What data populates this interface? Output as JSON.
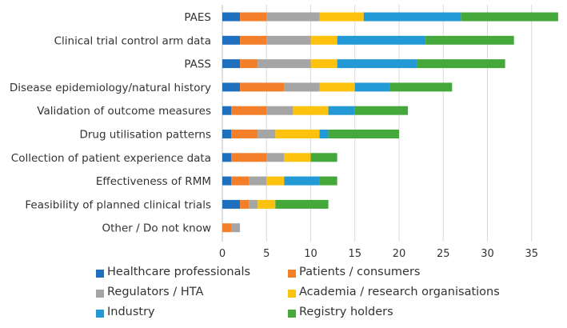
{
  "chart_data": {
    "type": "bar",
    "orientation": "horizontal",
    "stacked": true,
    "categories": [
      "PAES",
      "Clinical trial control arm data",
      "PASS",
      "Disease epidemiology/natural history",
      "Validation of outcome measures",
      "Drug utilisation patterns",
      "Collection of patient experience data",
      "Effectiveness of RMM",
      "Feasibility of planned clinical trials",
      "Other / Do not know"
    ],
    "series": [
      {
        "name": "Healthcare professionals",
        "color": "#1f6fbf",
        "values": [
          2,
          2,
          2,
          2,
          1,
          1,
          1,
          1,
          2,
          0
        ]
      },
      {
        "name": "Patients / consumers",
        "color": "#f47f2a",
        "values": [
          3,
          3,
          2,
          5,
          4,
          3,
          4,
          2,
          1,
          1
        ]
      },
      {
        "name": "Regulators / HTA",
        "color": "#a5a5a5",
        "values": [
          6,
          5,
          6,
          4,
          3,
          2,
          2,
          2,
          1,
          1
        ]
      },
      {
        "name": "Academia / research organisations",
        "color": "#fdc20e",
        "values": [
          5,
          3,
          3,
          4,
          4,
          5,
          3,
          2,
          2,
          0
        ]
      },
      {
        "name": "Industry",
        "color": "#239ad6",
        "values": [
          11,
          10,
          9,
          4,
          3,
          1,
          0,
          4,
          0,
          0
        ]
      },
      {
        "name": "Registry holders",
        "color": "#44a83b",
        "values": [
          11,
          10,
          10,
          7,
          6,
          8,
          3,
          2,
          6,
          0
        ]
      }
    ],
    "xticks": [
      0,
      5,
      10,
      15,
      20,
      25,
      30,
      35
    ],
    "xlim": [
      0,
      38
    ],
    "grid": true,
    "legend_position": "bottom",
    "title": "",
    "xlabel": "",
    "ylabel": ""
  }
}
